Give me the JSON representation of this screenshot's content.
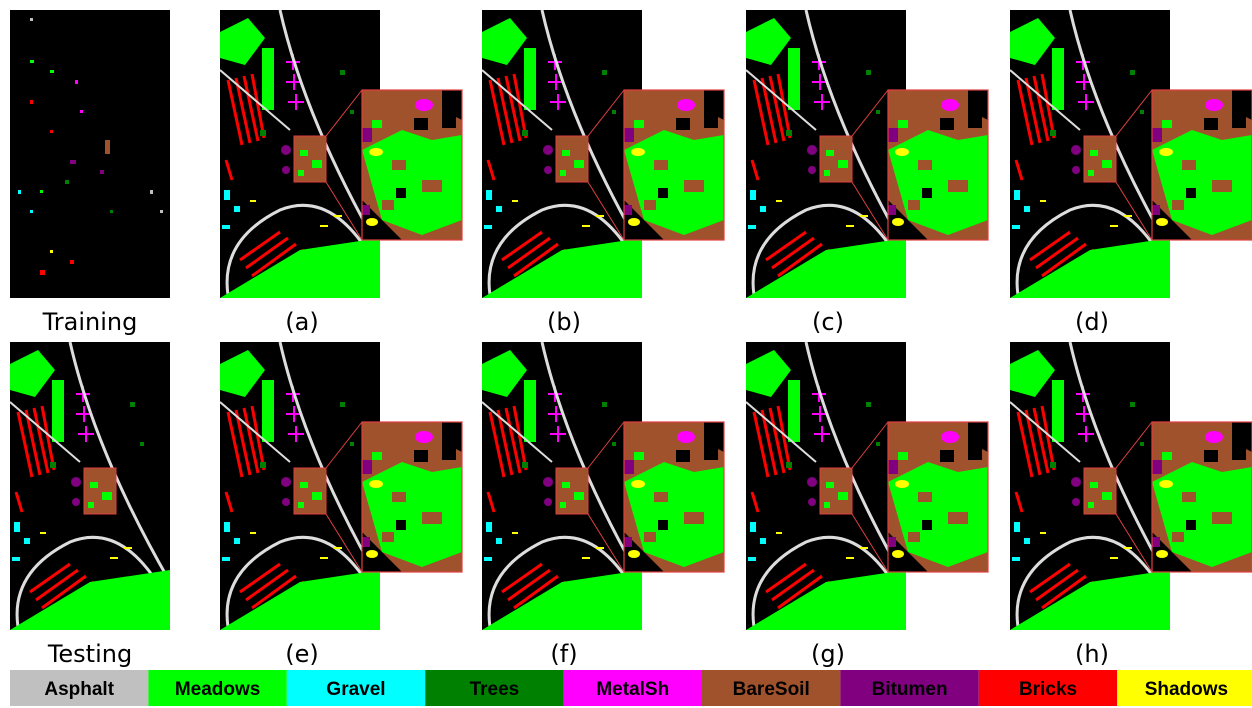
{
  "panels": [
    {
      "label": "Training"
    },
    {
      "label": "(a)"
    },
    {
      "label": "(b)"
    },
    {
      "label": "(c)"
    },
    {
      "label": "(d)"
    },
    {
      "label": "Testing"
    },
    {
      "label": "(e)"
    },
    {
      "label": "(f)"
    },
    {
      "label": "(g)"
    },
    {
      "label": "(h)"
    }
  ],
  "legend": [
    {
      "name": "Asphalt",
      "color": "#c0c0c0"
    },
    {
      "name": "Meadows",
      "color": "#00ff00"
    },
    {
      "name": "Gravel",
      "color": "#00ffff"
    },
    {
      "name": "Trees",
      "color": "#008000"
    },
    {
      "name": "MetalSh",
      "color": "#ff00ff"
    },
    {
      "name": "BareSoil",
      "color": "#a0522d"
    },
    {
      "name": "Bitumen",
      "color": "#800080"
    },
    {
      "name": "Bricks",
      "color": "#ff0000"
    },
    {
      "name": "Shadows",
      "color": "#ffff00"
    }
  ]
}
